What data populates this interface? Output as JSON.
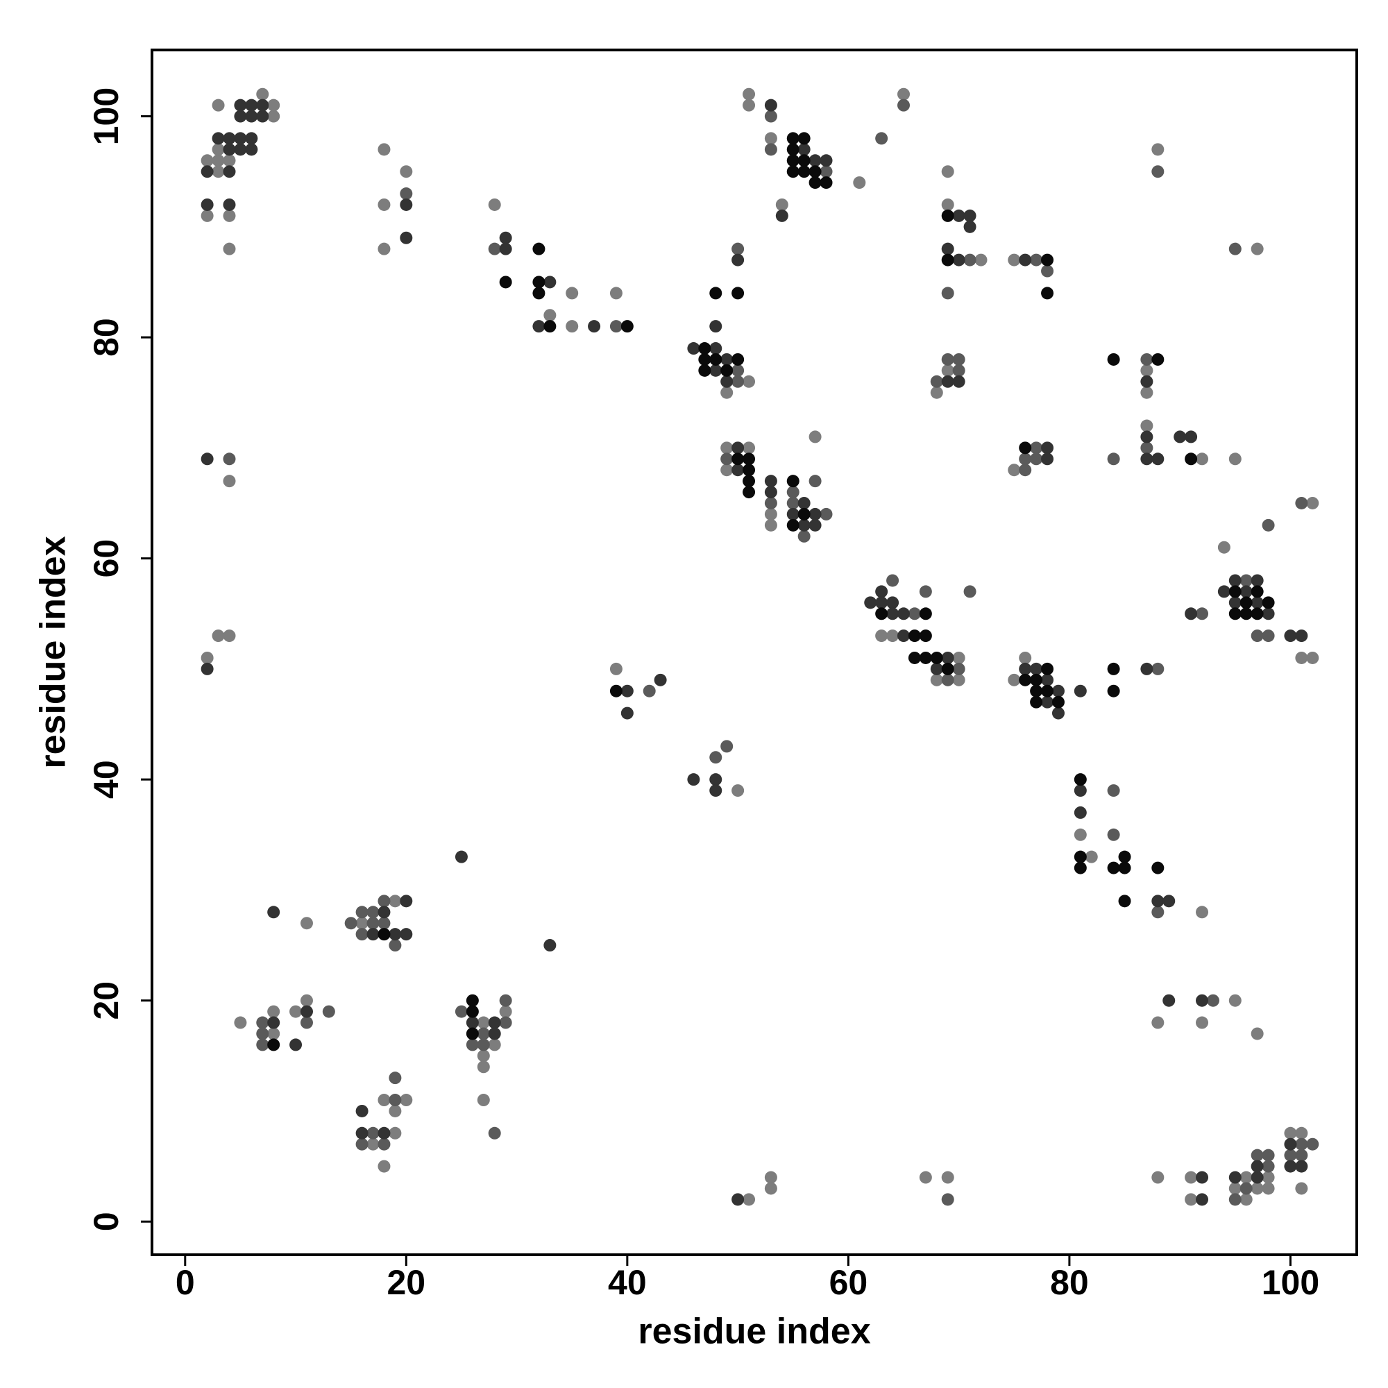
{
  "chart_data": {
    "type": "scatter",
    "xlabel": "residue index",
    "ylabel": "residue index",
    "xlim": [
      -3,
      106
    ],
    "ylim": [
      -3,
      106
    ],
    "xticks": [
      0,
      20,
      40,
      60,
      80,
      100
    ],
    "yticks": [
      0,
      20,
      40,
      60,
      80,
      100
    ],
    "grid": false,
    "series": [
      {
        "color": "#7d7d7d",
        "x": [
          3,
          2,
          3,
          3,
          4,
          2,
          4,
          4,
          3,
          8,
          7,
          8,
          18,
          18,
          18,
          20,
          28,
          35,
          33,
          35,
          39,
          51,
          49,
          51,
          51,
          53,
          54,
          61,
          65,
          49,
          51,
          49,
          53,
          53,
          57,
          69,
          69,
          72,
          75,
          69,
          68,
          87,
          87,
          87,
          92,
          95,
          97,
          88,
          75,
          4,
          2,
          3,
          4,
          63,
          64,
          70,
          68,
          70,
          75,
          76,
          94,
          101,
          102,
          102,
          39,
          50,
          81,
          82,
          92,
          11,
          16,
          19,
          5,
          8,
          8,
          10,
          11,
          27,
          29,
          28,
          27,
          27,
          27,
          19,
          17,
          18,
          18,
          20,
          19,
          88,
          92,
          95,
          97,
          51,
          53,
          53,
          67,
          69,
          88,
          91,
          91,
          96,
          98,
          95,
          97,
          98,
          96,
          100,
          101,
          101
        ],
        "y": [
          101,
          96,
          95,
          96,
          96,
          91,
          91,
          88,
          97,
          100,
          102,
          101,
          97,
          92,
          88,
          95,
          92,
          84,
          82,
          81,
          84,
          76,
          75,
          102,
          101,
          98,
          92,
          94,
          102,
          70,
          70,
          68,
          64,
          63,
          71,
          95,
          92,
          87,
          87,
          77,
          75,
          77,
          75,
          72,
          69,
          69,
          88,
          97,
          68,
          67,
          51,
          53,
          53,
          53,
          53,
          51,
          49,
          49,
          49,
          51,
          61,
          51,
          51,
          65,
          50,
          39,
          35,
          33,
          28,
          27,
          27,
          29,
          18,
          19,
          17,
          19,
          20,
          18,
          19,
          16,
          15,
          14,
          11,
          8,
          7,
          5,
          11,
          11,
          10,
          18,
          18,
          20,
          17,
          2,
          4,
          3,
          4,
          4,
          4,
          4,
          2,
          4,
          4,
          3,
          3,
          3,
          2,
          8,
          8,
          3
        ]
      },
      {
        "color": "#5a5a5a",
        "x": [
          20,
          28,
          39,
          50,
          50,
          50,
          53,
          53,
          58,
          63,
          65,
          49,
          53,
          55,
          55,
          58,
          56,
          57,
          71,
          69,
          77,
          78,
          69,
          70,
          70,
          68,
          87,
          87,
          84,
          95,
          88,
          76,
          76,
          77,
          77,
          4,
          64,
          66,
          67,
          70,
          69,
          71,
          88,
          96,
          92,
          97,
          98,
          98,
          101,
          42,
          48,
          49,
          84,
          84,
          88,
          15,
          17,
          17,
          18,
          19,
          18,
          16,
          16,
          7,
          7,
          7,
          11,
          13,
          25,
          29,
          29,
          27,
          26,
          27,
          28,
          17,
          16,
          18,
          19,
          19,
          93,
          69,
          96,
          95,
          98,
          97,
          98,
          101,
          102,
          100,
          101
        ],
        "y": [
          93,
          88,
          81,
          77,
          76,
          88,
          100,
          97,
          95,
          98,
          101,
          69,
          65,
          66,
          65,
          64,
          62,
          67,
          87,
          84,
          87,
          86,
          78,
          78,
          77,
          76,
          78,
          70,
          69,
          88,
          95,
          68,
          69,
          70,
          69,
          69,
          58,
          55,
          57,
          50,
          49,
          57,
          50,
          58,
          55,
          53,
          53,
          63,
          65,
          48,
          42,
          43,
          39,
          35,
          28,
          27,
          28,
          27,
          27,
          25,
          29,
          28,
          26,
          18,
          17,
          16,
          18,
          19,
          19,
          18,
          20,
          17,
          16,
          16,
          8,
          8,
          7,
          7,
          11,
          13,
          20,
          2,
          3,
          2,
          5,
          6,
          6,
          7,
          7,
          6,
          6
        ]
      },
      {
        "color": "#333333",
        "x": [
          2,
          4,
          2,
          4,
          3,
          4,
          4,
          5,
          5,
          6,
          6,
          5,
          5,
          6,
          6,
          7,
          7,
          20,
          20,
          29,
          29,
          33,
          32,
          37,
          46,
          48,
          49,
          48,
          49,
          48,
          50,
          53,
          56,
          57,
          58,
          54,
          50,
          50,
          53,
          53,
          56,
          55,
          57,
          56,
          57,
          70,
          71,
          71,
          69,
          70,
          76,
          69,
          70,
          87,
          87,
          87,
          88,
          90,
          91,
          78,
          78,
          2,
          2,
          62,
          63,
          63,
          64,
          64,
          65,
          65,
          69,
          68,
          76,
          77,
          78,
          79,
          78,
          79,
          81,
          87,
          94,
          95,
          97,
          96,
          95,
          97,
          98,
          91,
          100,
          101,
          40,
          43,
          40,
          46,
          48,
          48,
          81,
          81,
          88,
          89,
          25,
          33,
          8,
          18,
          17,
          19,
          20,
          20,
          8,
          10,
          11,
          28,
          26,
          28,
          16,
          16,
          18,
          89,
          92,
          50,
          92,
          92,
          95,
          97,
          97,
          100,
          100,
          101
        ],
        "y": [
          95,
          95,
          92,
          92,
          98,
          98,
          97,
          97,
          98,
          98,
          97,
          100,
          101,
          101,
          100,
          100,
          101,
          92,
          89,
          88,
          89,
          85,
          81,
          81,
          79,
          79,
          78,
          77,
          76,
          81,
          87,
          101,
          97,
          96,
          96,
          91,
          70,
          68,
          67,
          66,
          65,
          64,
          64,
          63,
          63,
          91,
          91,
          90,
          88,
          87,
          87,
          76,
          76,
          76,
          71,
          69,
          69,
          71,
          71,
          70,
          69,
          69,
          50,
          56,
          57,
          56,
          56,
          55,
          55,
          53,
          51,
          50,
          50,
          50,
          49,
          48,
          47,
          46,
          48,
          50,
          57,
          58,
          58,
          57,
          56,
          56,
          55,
          55,
          53,
          53,
          48,
          49,
          46,
          40,
          40,
          39,
          39,
          37,
          29,
          29,
          33,
          25,
          28,
          28,
          26,
          26,
          26,
          29,
          18,
          16,
          19,
          18,
          18,
          17,
          10,
          8,
          8,
          20,
          20,
          2,
          4,
          2,
          4,
          4,
          5,
          7,
          5,
          5
        ]
      },
      {
        "color": "#0a0a0a",
        "x": [
          29,
          32,
          32,
          32,
          33,
          40,
          47,
          47,
          48,
          50,
          47,
          49,
          48,
          50,
          55,
          56,
          55,
          55,
          56,
          55,
          56,
          57,
          57,
          58,
          50,
          51,
          51,
          51,
          51,
          55,
          56,
          55,
          69,
          69,
          78,
          78,
          84,
          88,
          91,
          76,
          63,
          67,
          66,
          67,
          66,
          67,
          68,
          69,
          78,
          76,
          77,
          77,
          78,
          77,
          79,
          84,
          84,
          95,
          97,
          96,
          98,
          95,
          96,
          97,
          39,
          81,
          81,
          81,
          84,
          85,
          85,
          85,
          88,
          18,
          8,
          26,
          26,
          26
        ],
        "y": [
          85,
          88,
          85,
          84,
          81,
          81,
          79,
          78,
          78,
          78,
          77,
          77,
          84,
          84,
          98,
          98,
          97,
          96,
          96,
          95,
          95,
          95,
          94,
          94,
          69,
          69,
          68,
          67,
          66,
          67,
          64,
          63,
          91,
          87,
          87,
          84,
          78,
          78,
          69,
          70,
          55,
          55,
          53,
          53,
          51,
          51,
          51,
          50,
          50,
          49,
          49,
          48,
          48,
          47,
          47,
          50,
          48,
          57,
          57,
          56,
          56,
          55,
          55,
          55,
          48,
          40,
          33,
          32,
          32,
          33,
          32,
          29,
          32,
          26,
          16,
          20,
          19,
          17
        ]
      }
    ]
  }
}
